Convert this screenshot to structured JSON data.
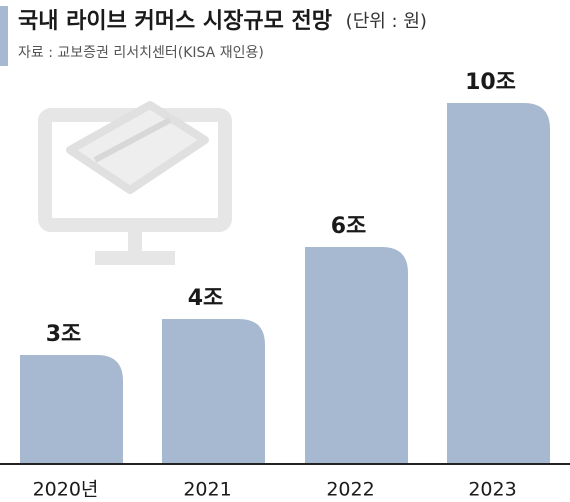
{
  "chart_data": {
    "type": "bar",
    "title": "국내 라이브 커머스 시장규모 전망",
    "unit": "(단위 : 원)",
    "subtitle": "자료 : 교보증권 리서치센터(KISA 재인용)",
    "categories": [
      "2020년",
      "2021",
      "2022",
      "2023"
    ],
    "values": [
      3,
      4,
      6,
      10
    ],
    "value_labels": [
      "3조",
      "4조",
      "6조",
      "10조"
    ],
    "color": "#a7b9d1"
  }
}
